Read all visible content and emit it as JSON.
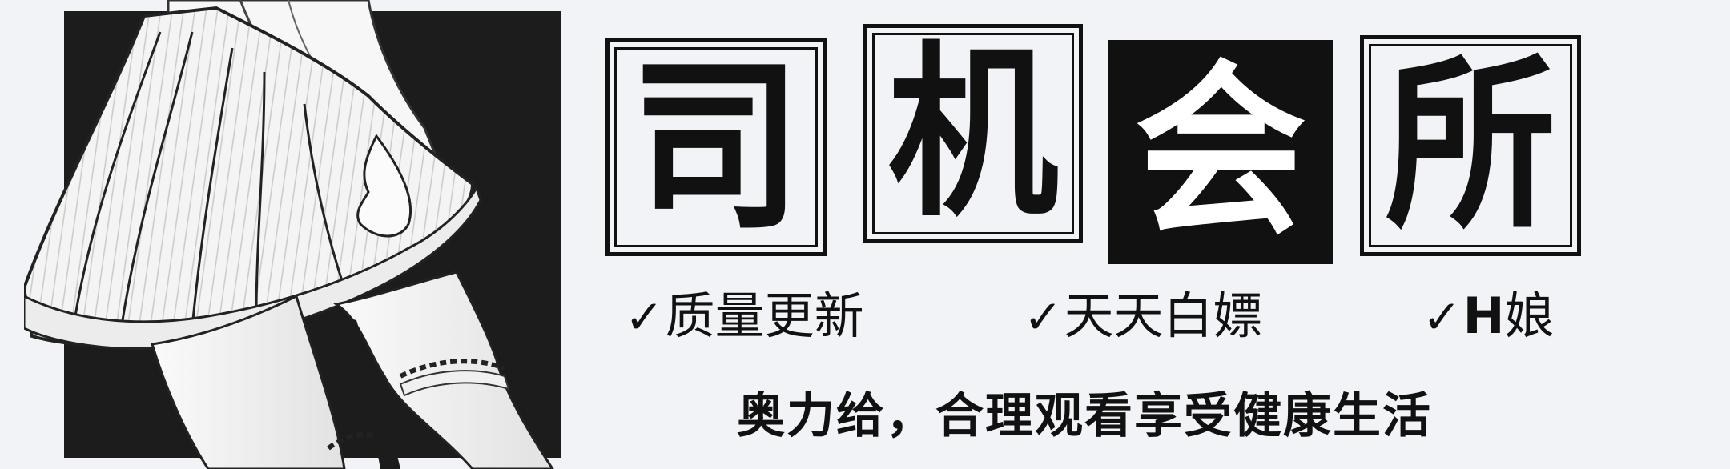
{
  "title": {
    "chars": [
      "司",
      "机",
      "会",
      "所"
    ]
  },
  "taglines": [
    {
      "check": "✓",
      "text": "质量更新"
    },
    {
      "check": "✓",
      "text": "天天白嫖"
    },
    {
      "check": "✓",
      "latin": "H",
      "text": "娘"
    }
  ],
  "slogan": "奥力给，合理观看享受健康生活",
  "colors": {
    "background": "#f2f3f7",
    "ink": "#111111",
    "inverse_text": "#ffffff"
  }
}
